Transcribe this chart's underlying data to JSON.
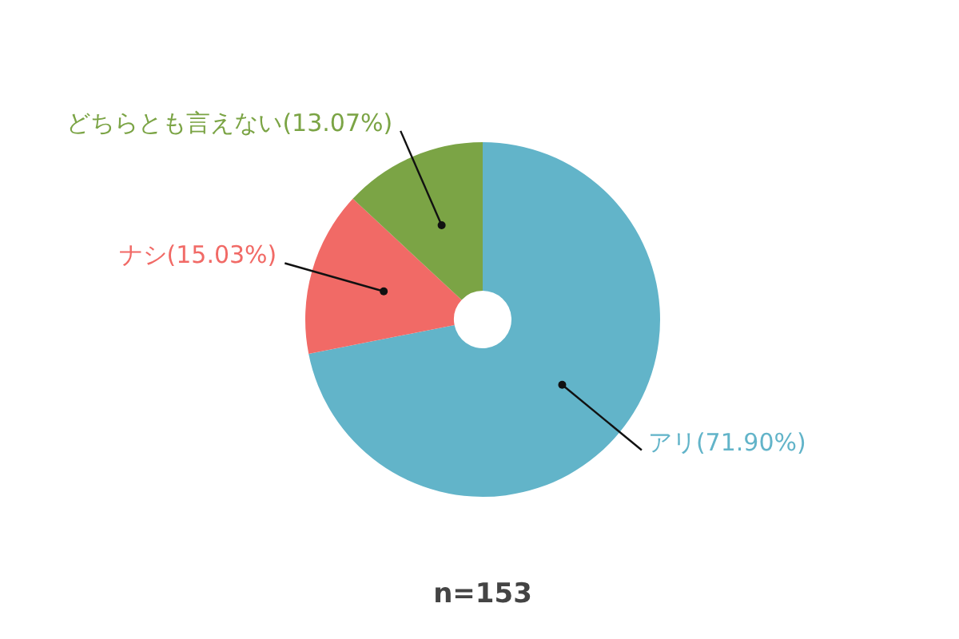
{
  "chart_data": {
    "type": "donut",
    "categories": [
      "アリ",
      "ナシ",
      "どちらとも言えない"
    ],
    "values": [
      71.9,
      15.03,
      13.07
    ],
    "colors": [
      "#62b4c9",
      "#f16a66",
      "#7ba445"
    ],
    "value_labels": [
      "(71.90%)",
      "(15.03%)",
      "(13.07%)"
    ],
    "annotations": [
      "n=153"
    ]
  }
}
